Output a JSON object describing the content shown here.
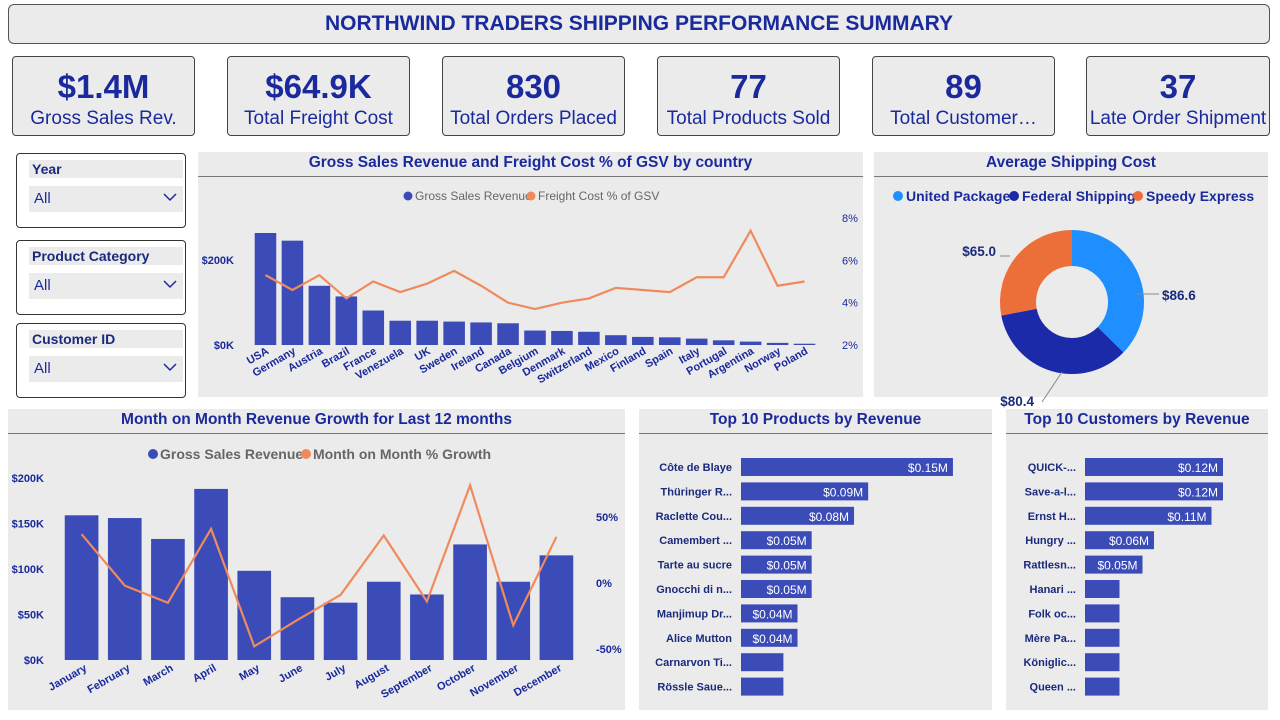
{
  "header": {
    "title": "NORTHWIND TRADERS SHIPPING PERFORMANCE SUMMARY"
  },
  "kpis": [
    {
      "value": "$1.4M",
      "label": "Gross Sales Rev."
    },
    {
      "value": "$64.9K",
      "label": "Total Freight Cost"
    },
    {
      "value": "830",
      "label": "Total Orders Placed"
    },
    {
      "value": "77",
      "label": "Total Products Sold"
    },
    {
      "value": "89",
      "label": "Total Customer…"
    },
    {
      "value": "37",
      "label": "Late Order Shipment"
    }
  ],
  "slicers": [
    {
      "title": "Year",
      "value": "All"
    },
    {
      "title": "Product Category",
      "value": "All"
    },
    {
      "title": "Customer ID",
      "value": "All"
    }
  ],
  "colors": {
    "bar": "#3b4cb8",
    "line": "#f08a5d",
    "up": "#1f8fff",
    "fs": "#1a2aa8",
    "se": "#ec6e38"
  },
  "chart_data": [
    {
      "type": "bar",
      "title": "Gross Sales Revenue and Freight Cost % of GSV by country",
      "legend": [
        "Gross Sales Revenue",
        "Freight Cost % of GSV"
      ],
      "categories": [
        "USA",
        "Germany",
        "Austria",
        "Brazil",
        "France",
        "Venezuela",
        "UK",
        "Sweden",
        "Ireland",
        "Canada",
        "Belgium",
        "Denmark",
        "Switzerland",
        "Mexico",
        "Finland",
        "Spain",
        "Italy",
        "Portugal",
        "Argentina",
        "Norway",
        "Poland"
      ],
      "series": [
        {
          "name": "Gross Sales Revenue",
          "values": [
            263000,
            245000,
            139000,
            114000,
            81000,
            57000,
            57000,
            55000,
            53000,
            51000,
            34000,
            33000,
            31000,
            23000,
            19000,
            18000,
            15000,
            11000,
            8000,
            5000,
            3000
          ]
        },
        {
          "name": "Freight Cost % of GSV",
          "values": [
            5.3,
            4.6,
            5.3,
            4.2,
            5.0,
            4.5,
            4.9,
            5.5,
            4.8,
            4.0,
            3.7,
            4.0,
            4.2,
            4.7,
            4.6,
            4.5,
            5.2,
            5.2,
            7.4,
            4.8,
            5.0
          ]
        }
      ],
      "yticks_left": [
        "$0K",
        "$200K"
      ],
      "yticks_right": [
        "2%",
        "4%",
        "6%",
        "8%"
      ],
      "y_right_range": [
        2,
        8
      ]
    },
    {
      "type": "pie",
      "title": "Average Shipping Cost",
      "legend": [
        "United Package",
        "Federal Shipping",
        "Speedy Express"
      ],
      "values": [
        86.6,
        80.4,
        65.0
      ],
      "labels": [
        "$86.6",
        "$80.4",
        "$65.0"
      ]
    },
    {
      "type": "bar",
      "title": "Month on Month Revenue Growth for Last 12 months",
      "legend": [
        "Gross Sales Revenue",
        "Month on Month % Growth"
      ],
      "categories": [
        "January",
        "February",
        "March",
        "April",
        "May",
        "June",
        "July",
        "August",
        "September",
        "October",
        "November",
        "December"
      ],
      "series": [
        {
          "name": "Gross Sales Revenue",
          "values": [
            159000,
            156000,
            133000,
            188000,
            98000,
            69000,
            63000,
            86000,
            72000,
            127000,
            86000,
            115000
          ]
        },
        {
          "name": "Month on Month % Growth",
          "values": [
            37,
            -2,
            -15,
            41,
            -48,
            -28,
            -9,
            36,
            -14,
            74,
            -32,
            35
          ]
        }
      ],
      "yticks_left": [
        "$0K",
        "$50K",
        "$100K",
        "$150K",
        "$200K"
      ],
      "yticks_right": [
        "-50%",
        "0%",
        "50%"
      ],
      "ylim": [
        0,
        200000
      ],
      "y_right_range": [
        -60,
        80
      ]
    },
    {
      "type": "bar",
      "title": "Top 10 Products by Revenue",
      "categories": [
        "Côte de Blaye",
        "Thüringer R...",
        "Raclette Cou...",
        "Camembert ...",
        "Tarte au sucre",
        "Gnocchi di n...",
        "Manjimup Dr...",
        "Alice Mutton",
        "Carnarvon Ti...",
        "Rössle Saue..."
      ],
      "values": [
        0.15,
        0.09,
        0.08,
        0.05,
        0.05,
        0.05,
        0.04,
        0.04,
        0.03,
        0.03
      ],
      "labels": [
        "$0.15M",
        "$0.09M",
        "$0.08M",
        "$0.05M",
        "$0.05M",
        "$0.05M",
        "$0.04M",
        "$0.04M",
        "",
        ""
      ]
    },
    {
      "type": "bar",
      "title": "Top 10 Customers by Revenue",
      "categories": [
        "QUICK-...",
        "Save-a-l...",
        "Ernst H...",
        "Hungry ...",
        "Rattlesn...",
        "Hanari ...",
        "Folk oc...",
        "Mère Pa...",
        "Königlic...",
        "Queen ..."
      ],
      "values": [
        0.12,
        0.12,
        0.11,
        0.06,
        0.05,
        0.03,
        0.03,
        0.03,
        0.03,
        0.03
      ],
      "labels": [
        "$0.12M",
        "$0.12M",
        "$0.11M",
        "$0.06M",
        "$0.05M",
        "",
        "",
        "",
        "",
        ""
      ]
    }
  ]
}
